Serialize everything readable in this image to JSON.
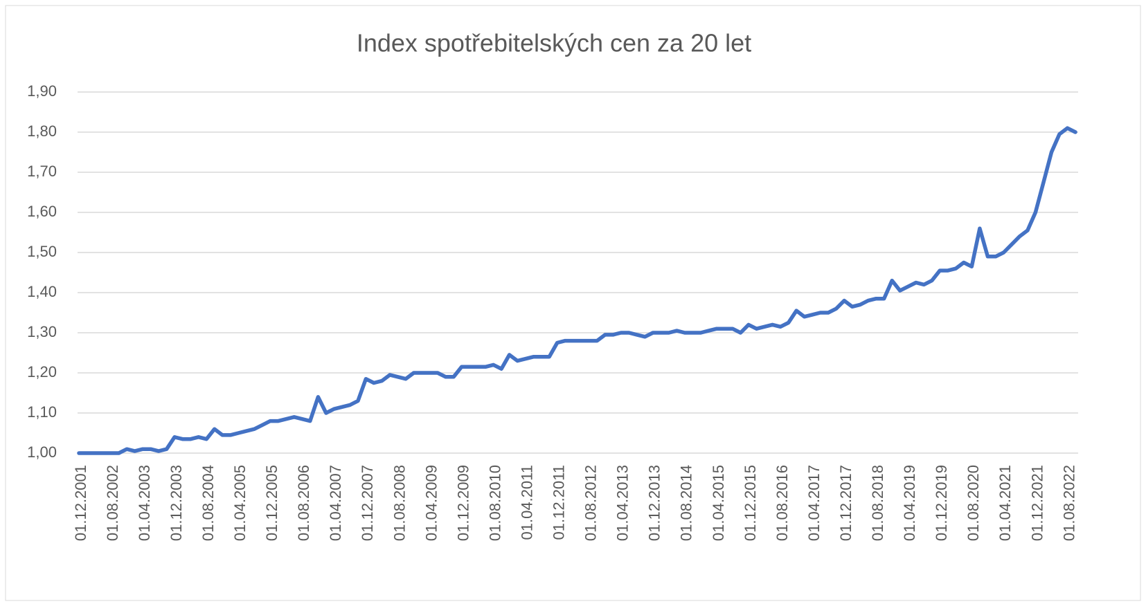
{
  "chart_data": {
    "type": "line",
    "title": "Index spotřebitelských cen za 20 let",
    "categories": [
      "01.12.2001",
      null,
      null,
      null,
      "01.08.2002",
      null,
      null,
      null,
      "01.04.2003",
      null,
      null,
      null,
      "01.12.2003",
      null,
      null,
      null,
      "01.08.2004",
      null,
      null,
      null,
      "01.04.2005",
      null,
      null,
      null,
      "01.12.2005",
      null,
      null,
      null,
      "01.08.2006",
      null,
      null,
      null,
      "01.04.2007",
      null,
      null,
      null,
      "01.12.2007",
      null,
      null,
      null,
      "01.08.2008",
      null,
      null,
      null,
      "01.04.2009",
      null,
      null,
      null,
      "01.12.2009",
      null,
      null,
      null,
      "01.08.2010",
      null,
      null,
      null,
      "01.04.2011",
      null,
      null,
      null,
      "01.12.2011",
      null,
      null,
      null,
      "01.08.2012",
      null,
      null,
      null,
      "01.04.2013",
      null,
      null,
      null,
      "01.12.2013",
      null,
      null,
      null,
      "01.08.2014",
      null,
      null,
      null,
      "01.04.2015",
      null,
      null,
      null,
      "01.12.2015",
      null,
      null,
      null,
      "01.08.2016",
      null,
      null,
      null,
      "01.04.2017",
      null,
      null,
      null,
      "01.12.2017",
      null,
      null,
      null,
      "01.08.2018",
      null,
      null,
      null,
      "01.04.2019",
      null,
      null,
      null,
      "01.12.2019",
      null,
      null,
      null,
      "01.08.2020",
      null,
      null,
      null,
      "01.04.2021",
      null,
      null,
      null,
      "01.12.2021",
      null,
      null,
      null,
      "01.08.2022",
      null
    ],
    "values": [
      1.0,
      1.0,
      1.0,
      1.0,
      1.0,
      1.0,
      1.01,
      1.005,
      1.01,
      1.01,
      1.005,
      1.01,
      1.04,
      1.035,
      1.035,
      1.04,
      1.035,
      1.06,
      1.045,
      1.045,
      1.05,
      1.055,
      1.06,
      1.07,
      1.08,
      1.08,
      1.085,
      1.09,
      1.085,
      1.08,
      1.14,
      1.1,
      1.11,
      1.115,
      1.12,
      1.13,
      1.185,
      1.175,
      1.18,
      1.195,
      1.19,
      1.185,
      1.2,
      1.2,
      1.2,
      1.2,
      1.19,
      1.19,
      1.215,
      1.215,
      1.215,
      1.215,
      1.22,
      1.21,
      1.245,
      1.23,
      1.235,
      1.24,
      1.24,
      1.24,
      1.275,
      1.28,
      1.28,
      1.28,
      1.28,
      1.28,
      1.295,
      1.295,
      1.3,
      1.3,
      1.295,
      1.29,
      1.3,
      1.3,
      1.3,
      1.305,
      1.3,
      1.3,
      1.3,
      1.305,
      1.31,
      1.31,
      1.31,
      1.3,
      1.32,
      1.31,
      1.315,
      1.32,
      1.315,
      1.325,
      1.355,
      1.34,
      1.345,
      1.35,
      1.35,
      1.36,
      1.38,
      1.365,
      1.37,
      1.38,
      1.385,
      1.385,
      1.43,
      1.405,
      1.415,
      1.425,
      1.42,
      1.43,
      1.455,
      1.455,
      1.46,
      1.475,
      1.465,
      1.56,
      1.49,
      1.49,
      1.5,
      1.52,
      1.54,
      1.555,
      1.6,
      1.675,
      1.75,
      1.795,
      1.81,
      1.8
    ],
    "color": "#4472c4",
    "ylim": [
      1.0,
      1.9
    ],
    "yticks": [
      {
        "value": 1.0,
        "label": "1,00"
      },
      {
        "value": 1.1,
        "label": "1,10"
      },
      {
        "value": 1.2,
        "label": "1,20"
      },
      {
        "value": 1.3,
        "label": "1,30"
      },
      {
        "value": 1.4,
        "label": "1,40"
      },
      {
        "value": 1.5,
        "label": "1,50"
      },
      {
        "value": 1.6,
        "label": "1,60"
      },
      {
        "value": 1.7,
        "label": "1,70"
      },
      {
        "value": 1.8,
        "label": "1,80"
      },
      {
        "value": 1.9,
        "label": "1,90"
      }
    ],
    "grid": true
  }
}
